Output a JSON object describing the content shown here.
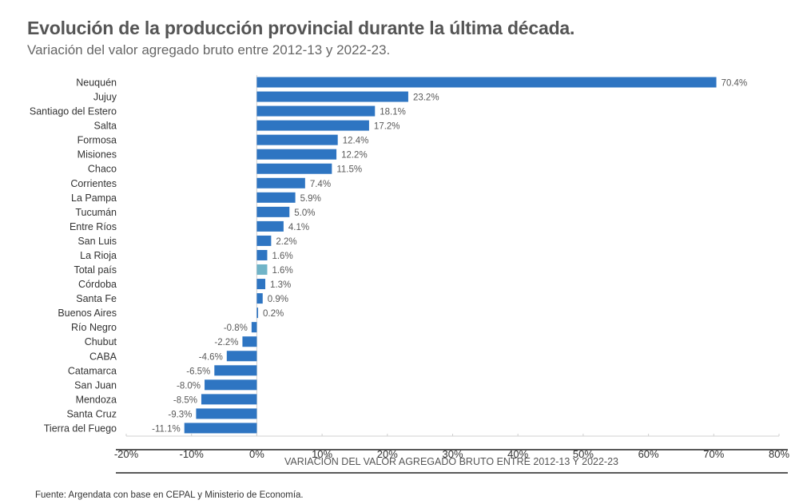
{
  "title": "Evolución de la producción provincial durante la última década.",
  "subtitle": "Variación del valor agregado bruto entre 2012-13 y 2022-23.",
  "source": "Fuente: Argendata con base en CEPAL y Ministerio de Economía.",
  "chart_data": {
    "type": "bar",
    "orientation": "horizontal",
    "categories": [
      "Neuquén",
      "Jujuy",
      "Santiago del Estero",
      "Salta",
      "Formosa",
      "Misiones",
      "Chaco",
      "Corrientes",
      "La Pampa",
      "Tucumán",
      "Entre Ríos",
      "San Luis",
      "La Rioja",
      "Total país",
      "Córdoba",
      "Santa Fe",
      "Buenos Aires",
      "Río Negro",
      "Chubut",
      "CABA",
      "Catamarca",
      "San Juan",
      "Mendoza",
      "Santa Cruz",
      "Tierra del Fuego"
    ],
    "values": [
      70.4,
      23.2,
      18.1,
      17.2,
      12.4,
      12.2,
      11.5,
      7.4,
      5.9,
      5.0,
      4.1,
      2.2,
      1.6,
      1.6,
      1.3,
      0.9,
      0.2,
      -0.8,
      -2.2,
      -4.6,
      -6.5,
      -8.0,
      -8.5,
      -9.3,
      -11.1
    ],
    "data_labels": [
      "70.4%",
      "23.2%",
      "18.1%",
      "17.2%",
      "12.4%",
      "12.2%",
      "11.5%",
      "7.4%",
      "5.9%",
      "5.0%",
      "4.1%",
      "2.2%",
      "1.6%",
      "1.6%",
      "1.3%",
      "0.9%",
      "0.2%",
      "-0.8%",
      "-2.2%",
      "-4.6%",
      "-6.5%",
      "-8.0%",
      "-8.5%",
      "-9.3%",
      "-11.1%"
    ],
    "highlight": "Total país",
    "xlabel": "VARIACIÓN DEL VALOR AGREGADO BRUTO ENTRE 2012-13 Y 2022-23",
    "ylabel": "",
    "xlim": [
      -20,
      80
    ],
    "xticks": [
      -20,
      -10,
      0,
      10,
      20,
      30,
      40,
      50,
      60,
      70,
      80
    ],
    "xtick_labels": [
      "-20%",
      "-10%",
      "0%",
      "10%",
      "20%",
      "30%",
      "40%",
      "50%",
      "60%",
      "70%",
      "80%"
    ],
    "grid": false,
    "colors": {
      "bar": "#2e75c2",
      "highlight": "#70b4c8"
    }
  }
}
